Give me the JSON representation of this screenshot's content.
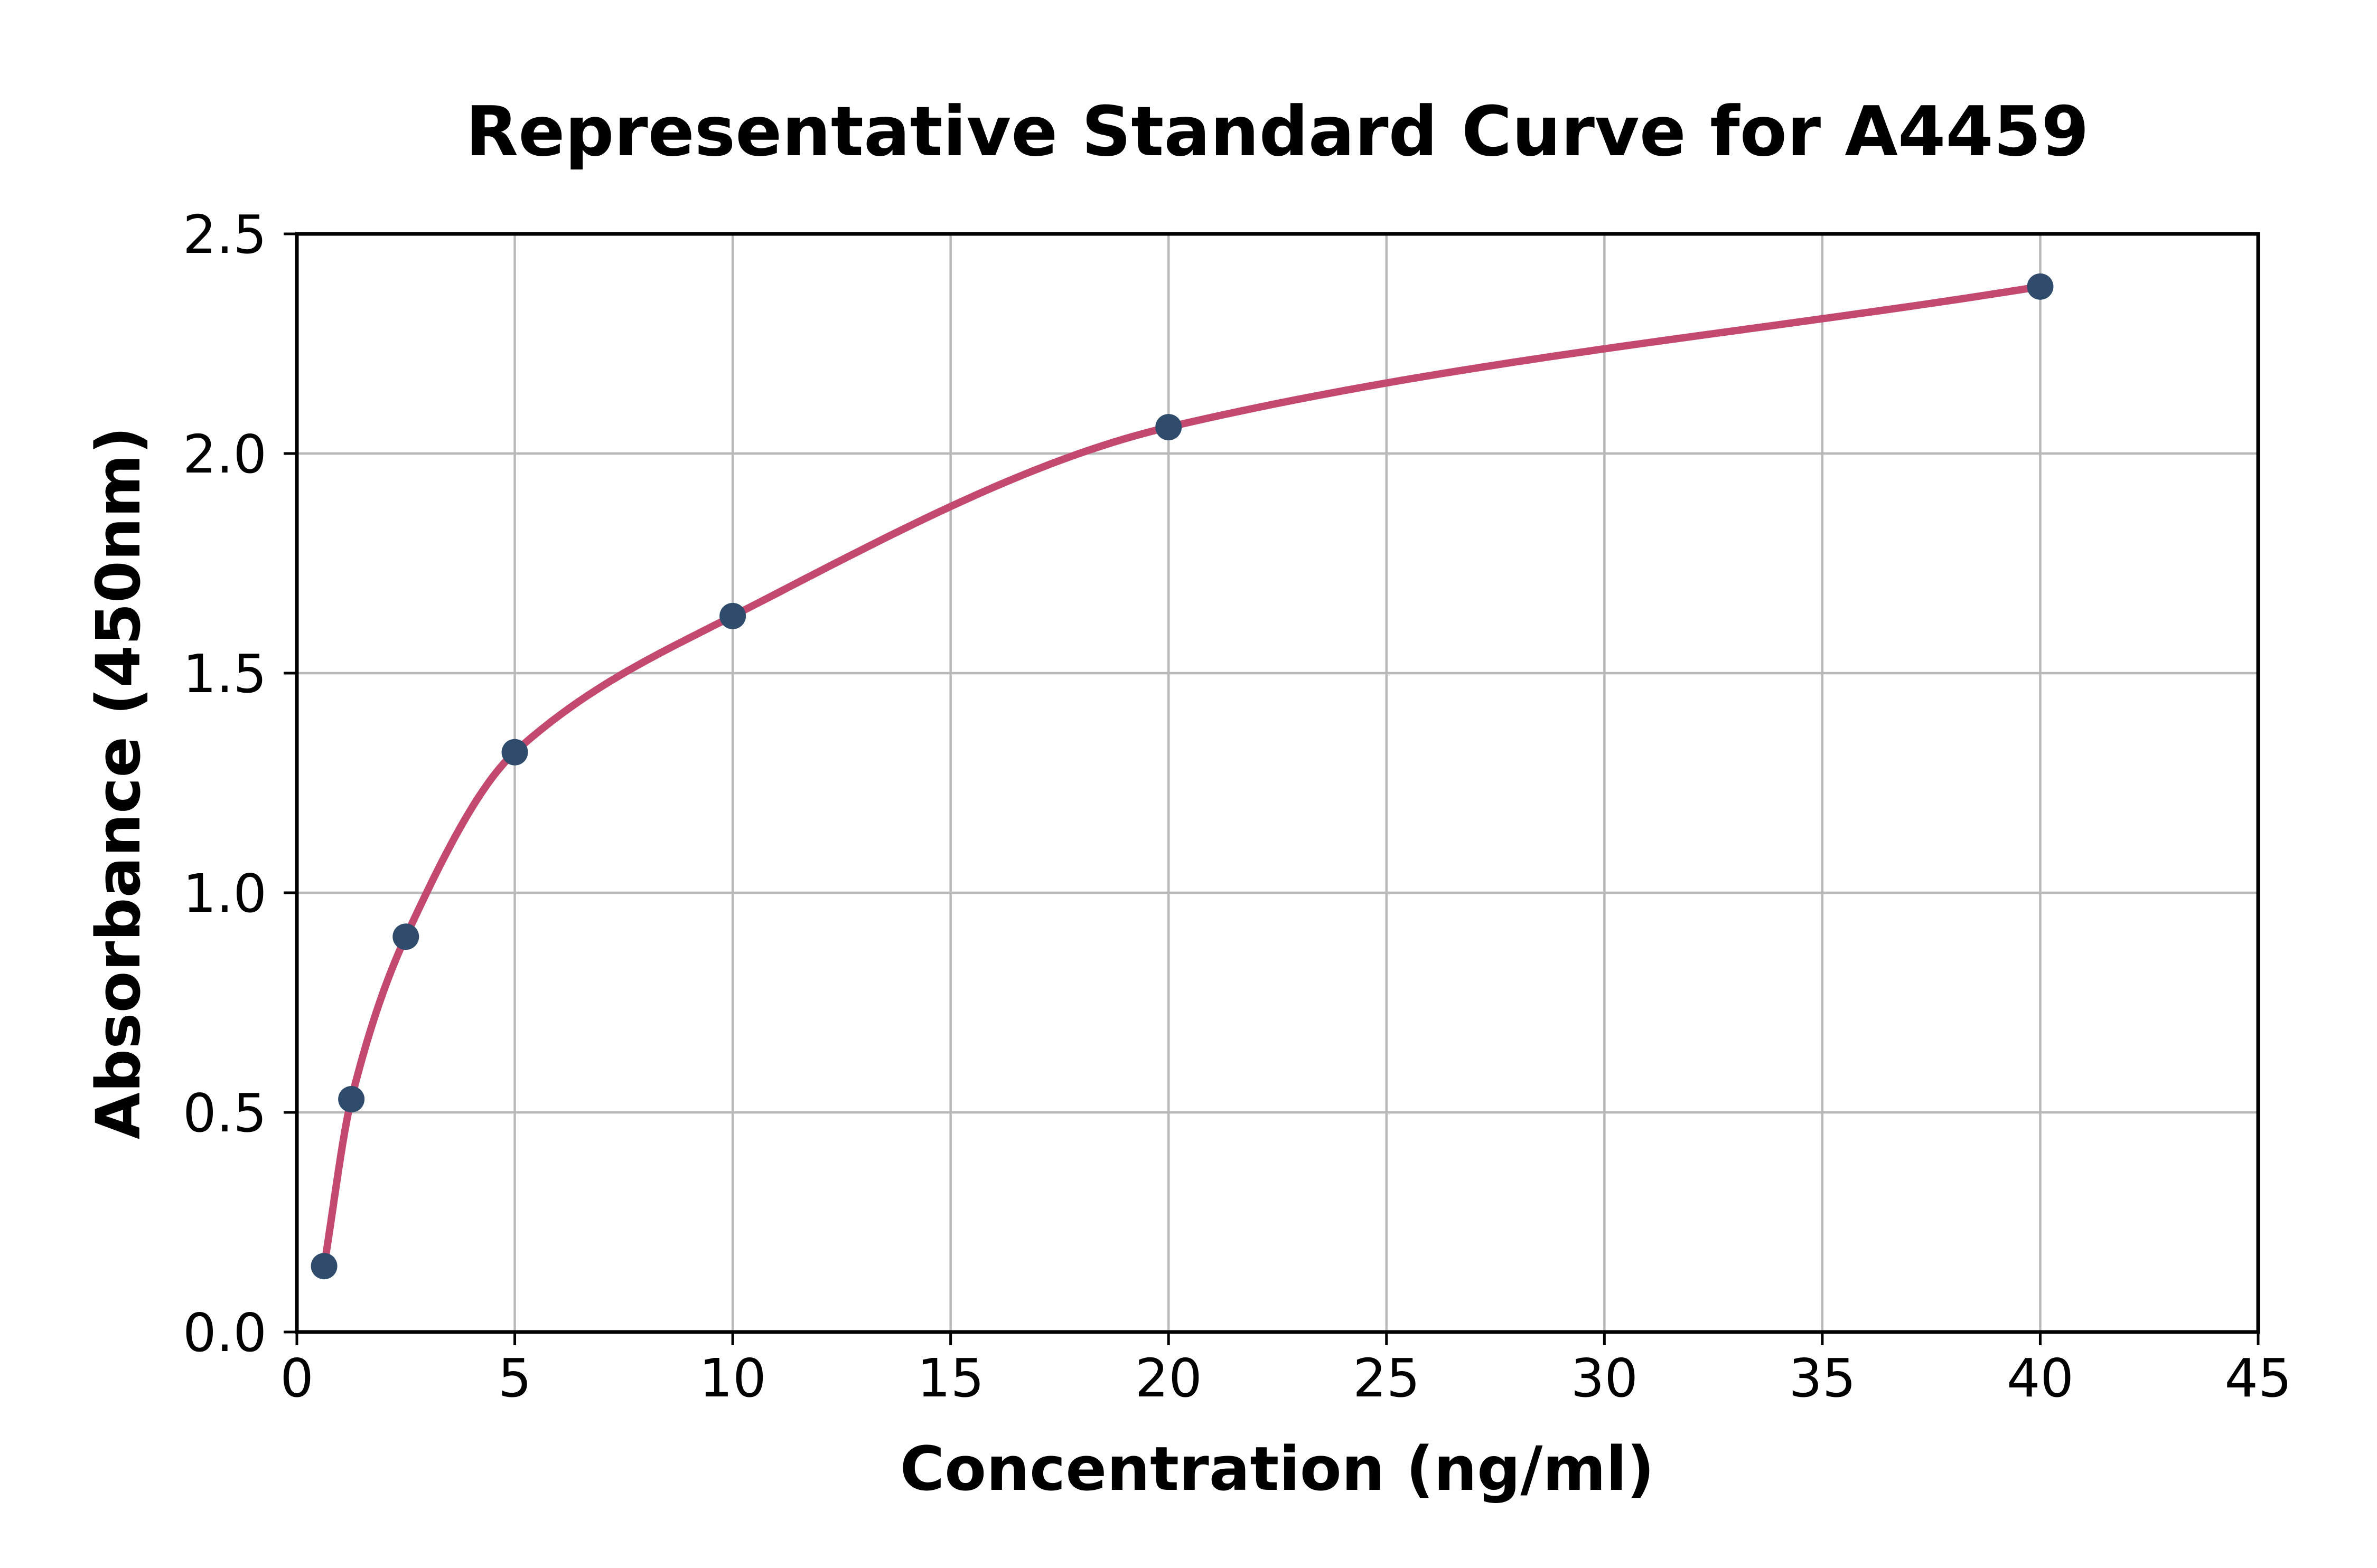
{
  "chart_data": {
    "type": "scatter",
    "title": "Representative Standard Curve for A4459",
    "xlabel": "Concentration (ng/ml)",
    "ylabel": "Absorbance (450nm)",
    "x": [
      0.625,
      1.25,
      2.5,
      5,
      10,
      20,
      40
    ],
    "y": [
      0.15,
      0.53,
      0.9,
      1.32,
      1.63,
      2.06,
      2.38
    ],
    "fit_curve": true,
    "xlim": [
      0,
      45
    ],
    "ylim": [
      0,
      2.5
    ],
    "xticks": [
      0,
      5,
      10,
      15,
      20,
      25,
      30,
      35,
      40,
      45
    ],
    "xtick_labels": [
      "0",
      "5",
      "10",
      "15",
      "20",
      "25",
      "30",
      "35",
      "40",
      "45"
    ],
    "yticks": [
      0,
      0.5,
      1.0,
      1.5,
      2.0,
      2.5
    ],
    "ytick_labels": [
      "0.0",
      "0.5",
      "1.0",
      "1.5",
      "2.0",
      "2.5"
    ],
    "grid": true,
    "legend": "none",
    "colors": {
      "curve": "#c3496f",
      "points": "#2f4c6c",
      "grid": "#b9b9b9",
      "spine": "#000000",
      "background": "#ffffff",
      "text": "#000000"
    }
  }
}
